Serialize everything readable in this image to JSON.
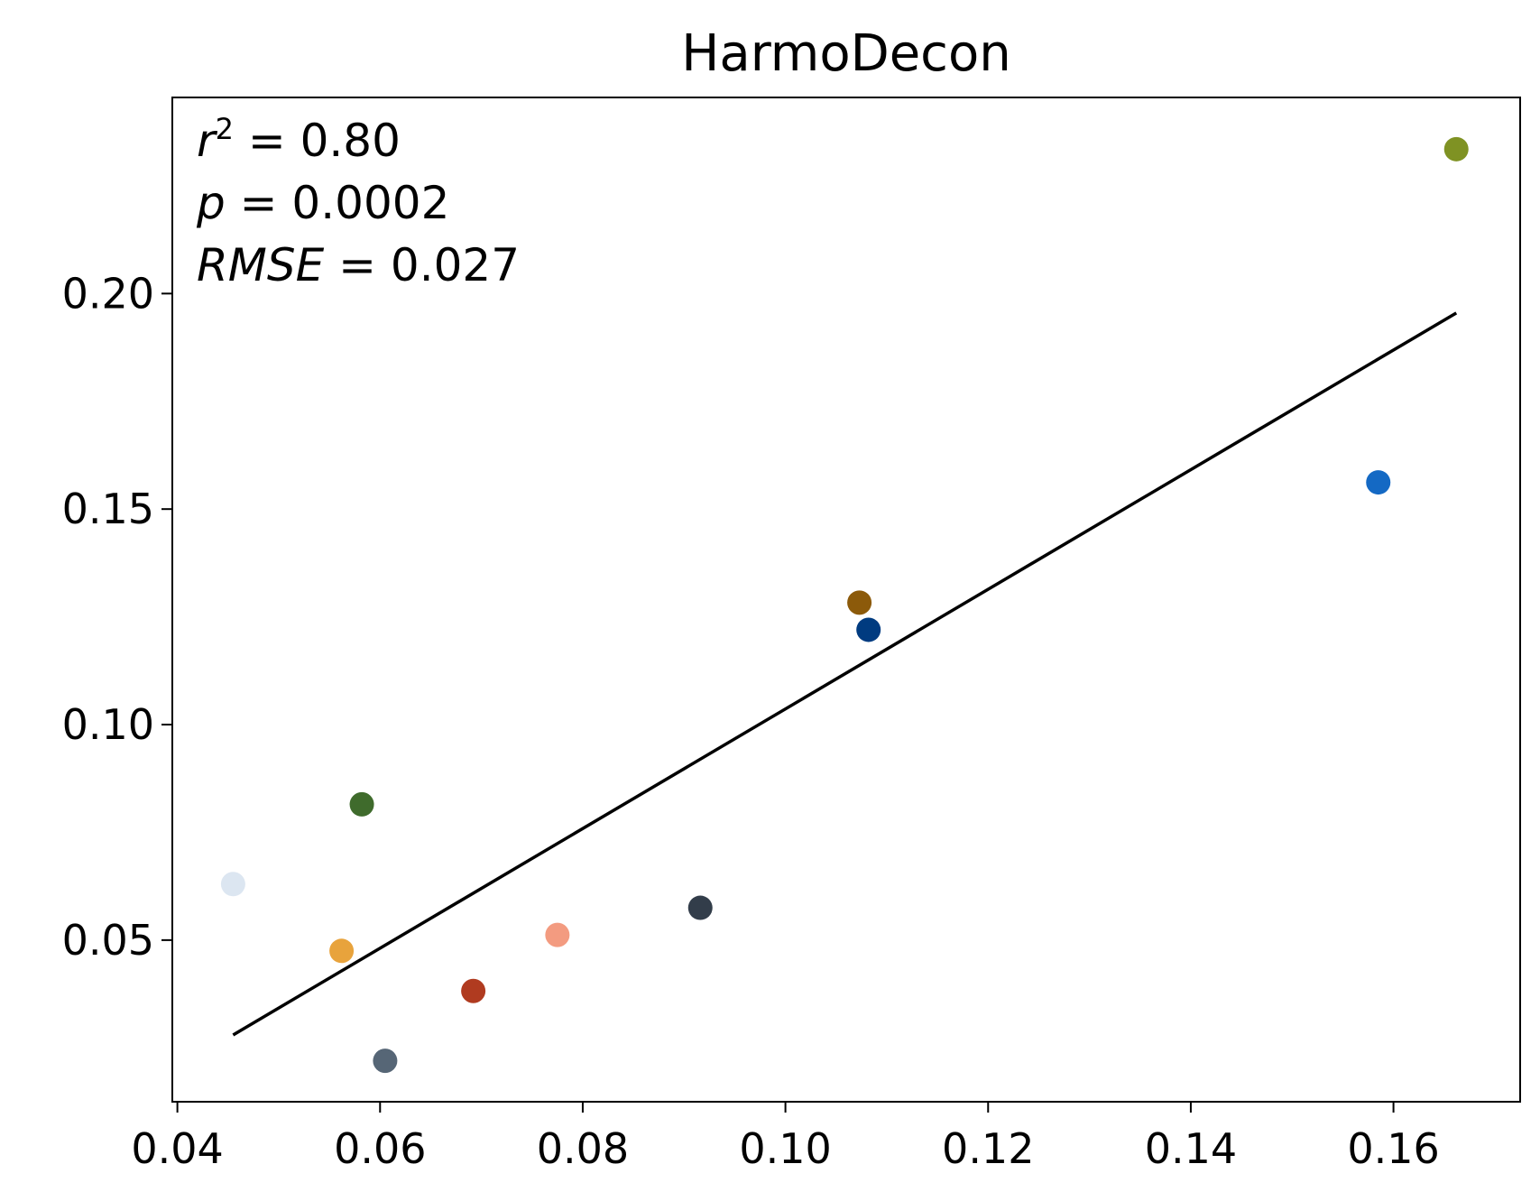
{
  "chart_data": {
    "type": "scatter",
    "title": "HarmoDecon",
    "xlabel": "",
    "ylabel": "",
    "xlim": [
      0.0395,
      0.1725
    ],
    "ylim": [
      0.0125,
      0.2455
    ],
    "x_ticks": [
      "0.04",
      "0.06",
      "0.08",
      "0.10",
      "0.12",
      "0.14",
      "0.16"
    ],
    "x_tick_values": [
      0.04,
      0.06,
      0.08,
      0.1,
      0.12,
      0.14,
      0.16
    ],
    "y_ticks": [
      "0.05",
      "0.10",
      "0.15",
      "0.20"
    ],
    "y_tick_values": [
      0.05,
      0.1,
      0.15,
      0.2
    ],
    "grid": false,
    "legend": "none",
    "annotations": {
      "r2_symbol": "r",
      "r2_exponent": "2",
      "r2_value": " = 0.80",
      "p_symbol": "p",
      "p_value": " = 0.0002",
      "rmse_symbol": "RMSE",
      "rmse_value": " = 0.027"
    },
    "points": [
      {
        "x": 0.0455,
        "y": 0.063,
        "color": "#dce6f1"
      },
      {
        "x": 0.0562,
        "y": 0.0475,
        "color": "#e8a33c"
      },
      {
        "x": 0.0582,
        "y": 0.0815,
        "color": "#3f6b2c"
      },
      {
        "x": 0.0605,
        "y": 0.022,
        "color": "#566676"
      },
      {
        "x": 0.0692,
        "y": 0.0382,
        "color": "#b03b20"
      },
      {
        "x": 0.0775,
        "y": 0.0512,
        "color": "#f39b80"
      },
      {
        "x": 0.0916,
        "y": 0.0575,
        "color": "#323d4a"
      },
      {
        "x": 0.1073,
        "y": 0.1283,
        "color": "#8c5a0a"
      },
      {
        "x": 0.1082,
        "y": 0.122,
        "color": "#003b80"
      },
      {
        "x": 0.1585,
        "y": 0.1562,
        "color": "#1469c4"
      },
      {
        "x": 0.1662,
        "y": 0.2335,
        "color": "#7f9223"
      }
    ],
    "fit_line": {
      "x": [
        0.0455,
        0.1662
      ],
      "y": [
        0.028,
        0.1955
      ],
      "color": "#000000"
    }
  }
}
